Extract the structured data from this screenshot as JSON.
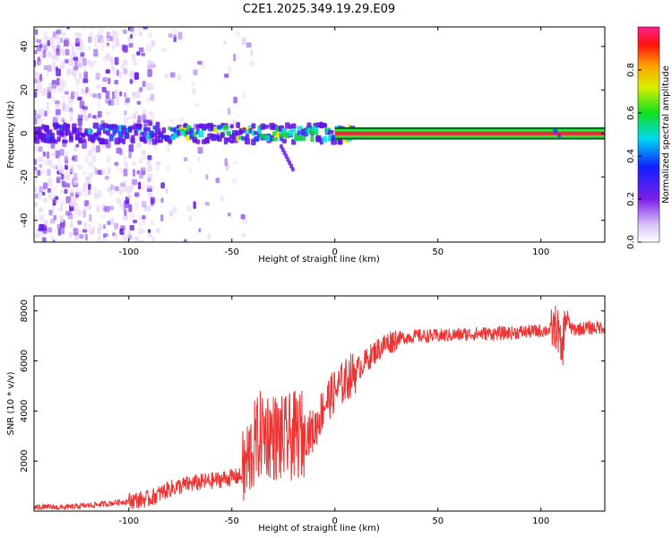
{
  "title": "C2E1.2025.349.19.29.E09",
  "chart_data": [
    {
      "type": "heatmap",
      "name": "spectrogram",
      "xlabel": "Height of straight line (km)",
      "ylabel": "Frequency (Hz)",
      "xlim": [
        -146,
        131
      ],
      "ylim": [
        -50,
        49
      ],
      "xticks": [
        -100,
        -50,
        0,
        50,
        100
      ],
      "yticks": [
        -40,
        -20,
        0,
        20,
        40
      ],
      "signal_band_hz": [
        -2,
        2
      ],
      "colorbar": {
        "label": "Normalized spectral amplitude",
        "range": [
          0.0,
          1.0
        ],
        "ticks": [
          "0.0",
          "0.2",
          "0.4",
          "0.6",
          "0.8"
        ]
      },
      "colors": {
        "low": "#e8d8f8",
        "mid_low": "#6010e0",
        "mid": "#00e0e0",
        "mid_high": "#ffe000",
        "high": "#ff2040"
      }
    },
    {
      "type": "line",
      "name": "snr",
      "xlabel": "Height of straight line (km)",
      "ylabel": "SNR (10 * v/v)",
      "xlim": [
        -146,
        131
      ],
      "ylim": [
        0,
        8600
      ],
      "xticks": [
        -100,
        -50,
        0,
        50,
        100
      ],
      "yticks": [
        2000,
        4000,
        6000,
        8000
      ],
      "color": "#ee3333",
      "series": [
        {
          "name": "SNR",
          "x": [
            -146,
            -130,
            -110,
            -90,
            -80,
            -70,
            -60,
            -50,
            -45,
            -40,
            -35,
            -30,
            -25,
            -20,
            -15,
            -10,
            -5,
            0,
            5,
            10,
            15,
            20,
            25,
            30,
            40,
            50,
            60,
            70,
            80,
            90,
            100,
            105,
            108,
            110,
            112,
            115,
            120,
            131
          ],
          "y": [
            150,
            150,
            300,
            500,
            900,
            1100,
            1200,
            1350,
            1400,
            2500,
            3200,
            3000,
            2800,
            3000,
            3100,
            3200,
            4300,
            4800,
            5200,
            5600,
            6000,
            6400,
            6700,
            6900,
            7000,
            7000,
            7050,
            7100,
            7100,
            7150,
            7200,
            7250,
            7400,
            6200,
            7800,
            7250,
            7300,
            7350
          ]
        }
      ]
    }
  ]
}
